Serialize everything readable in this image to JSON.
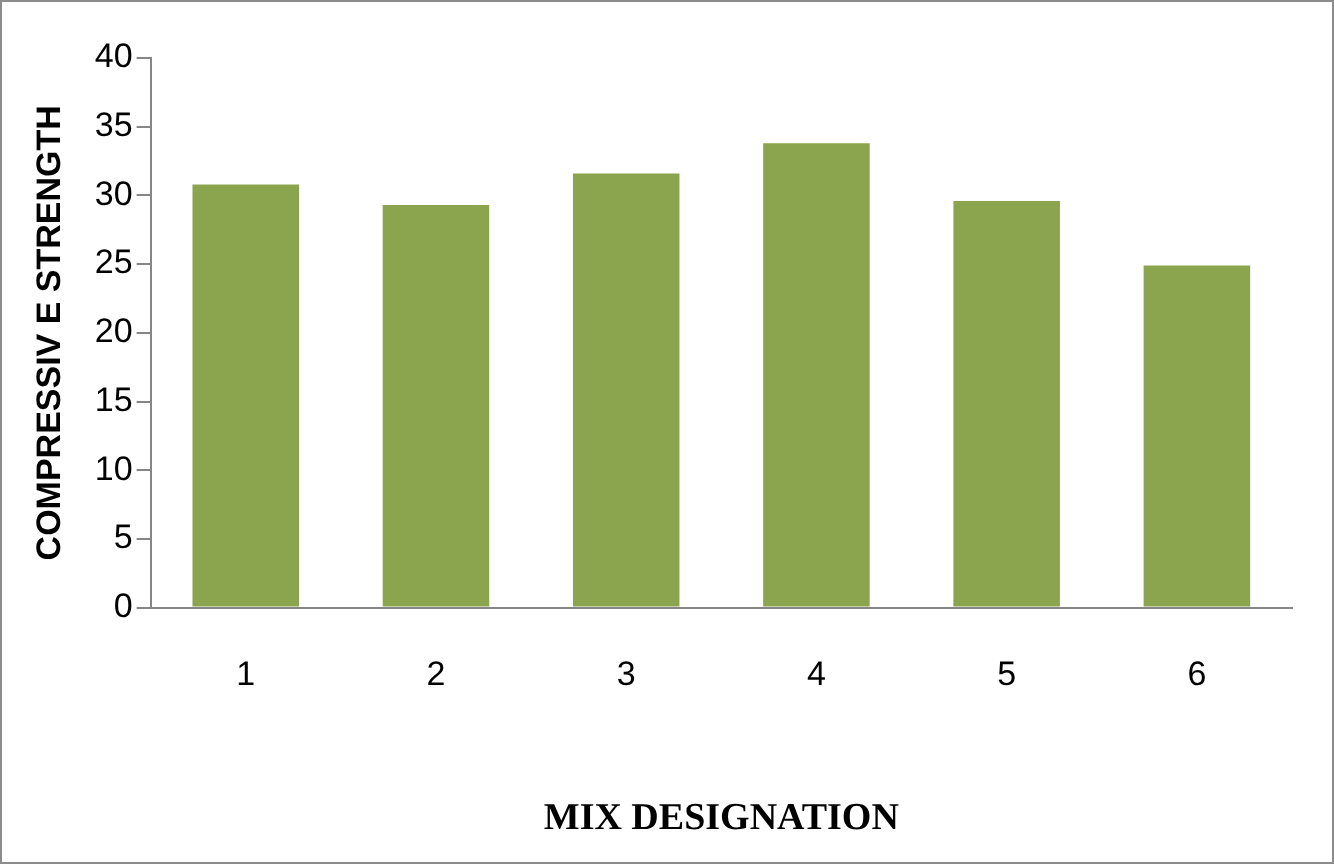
{
  "chart_data": {
    "type": "bar",
    "xlabel": "MIX DESIGNATION",
    "ylabel": "COMPRESSIV E STRENGTH",
    "categories": [
      "1",
      "2",
      "3",
      "4",
      "5",
      "6"
    ],
    "values": [
      30.8,
      29.3,
      31.6,
      33.8,
      29.6,
      24.9
    ],
    "color": "#8aa54d",
    "ylim": [
      0,
      40
    ],
    "yticks": [
      0,
      5,
      10,
      15,
      20,
      25,
      30,
      35,
      40
    ],
    "grid": false,
    "legend": false
  }
}
